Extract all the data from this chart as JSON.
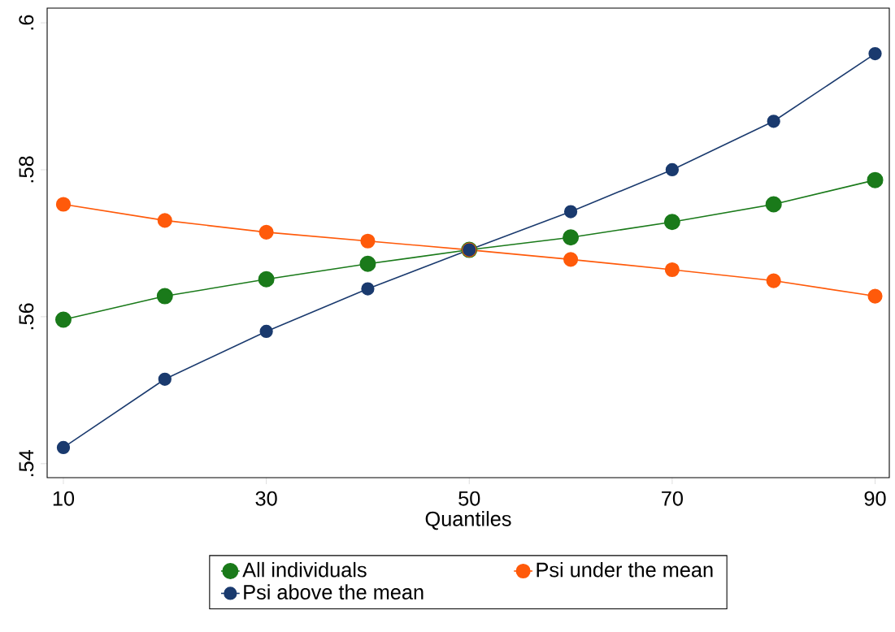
{
  "chart_data": {
    "type": "line",
    "xlabel": "Quantiles",
    "x": [
      10,
      20,
      30,
      40,
      50,
      60,
      70,
      80,
      90
    ],
    "series": [
      {
        "name": "All individuals",
        "color": "#1a7a1a",
        "values": [
          0.5596,
          0.5628,
          0.5651,
          0.5672,
          0.5691,
          0.5708,
          0.5729,
          0.5753,
          0.5786
        ]
      },
      {
        "name": "Psi under the mean",
        "color": "#ff5a0a",
        "values": [
          0.5753,
          0.5731,
          0.5715,
          0.5703,
          0.5691,
          0.5678,
          0.5664,
          0.5649,
          0.5628
        ]
      },
      {
        "name": "Psi above the mean",
        "color": "#1a3a6e",
        "values": [
          0.5422,
          0.5515,
          0.558,
          0.5638,
          0.5691,
          0.5743,
          0.58,
          0.5866,
          0.5958
        ]
      }
    ],
    "xlim": [
      8.4,
      91.4
    ],
    "ylim": [
      0.5381,
      0.602
    ],
    "xticks": [
      10,
      30,
      50,
      70,
      90
    ],
    "yticks": [
      {
        "value": 0.54,
        "label": ".54"
      },
      {
        "value": 0.56,
        "label": ".56"
      },
      {
        "value": 0.58,
        "label": ".58"
      },
      {
        "value": 0.6,
        "label": ".6"
      }
    ],
    "legend": "bottom",
    "marker": "circle",
    "line_style": "solid"
  }
}
